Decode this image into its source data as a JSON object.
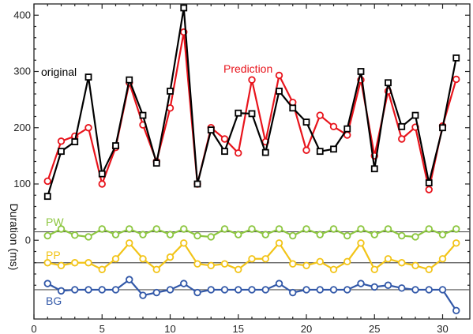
{
  "chart_data": {
    "type": "line",
    "title": "",
    "xlabel": "",
    "ylabel": "Duration (ms)",
    "xlim": [
      0,
      32
    ],
    "ylim": [
      -140,
      420
    ],
    "x_ticks": [
      0,
      5,
      10,
      15,
      20,
      25,
      30
    ],
    "y_ticks": [
      0,
      100,
      200,
      300,
      400
    ],
    "grid": false,
    "x": [
      1,
      2,
      3,
      4,
      5,
      6,
      7,
      8,
      9,
      10,
      11,
      12,
      13,
      14,
      15,
      16,
      17,
      18,
      19,
      20,
      21,
      22,
      23,
      24,
      25,
      26,
      27,
      28,
      29,
      30,
      31
    ],
    "series": [
      {
        "name": "original",
        "color": "#000000",
        "marker": "square",
        "values": [
          78,
          158,
          175,
          290,
          118,
          168,
          285,
          222,
          137,
          265,
          413,
          100,
          196,
          158,
          226,
          225,
          156,
          265,
          235,
          210,
          158,
          162,
          198,
          300,
          127,
          280,
          202,
          222,
          102,
          200,
          324
        ]
      },
      {
        "name": "Prediction",
        "color": "#e8141c",
        "marker": "circle",
        "values": [
          105,
          176,
          185,
          200,
          100,
          165,
          280,
          205,
          140,
          235,
          370,
          100,
          200,
          180,
          155,
          285,
          175,
          293,
          245,
          160,
          222,
          202,
          187,
          285,
          150,
          265,
          180,
          201,
          90,
          203,
          286
        ]
      },
      {
        "name": "PW",
        "color": "#8cc63f",
        "marker": "circle",
        "baseline": 15,
        "values": [
          8,
          20,
          9,
          6,
          20,
          10,
          20,
          10,
          20,
          10,
          20,
          8,
          6,
          20,
          10,
          20,
          10,
          20,
          8,
          20,
          10,
          20,
          8,
          20,
          10,
          20,
          8,
          6,
          20,
          10,
          20
        ]
      },
      {
        "name": "PP",
        "color": "#f2c418",
        "marker": "circle",
        "baseline": -40,
        "values": [
          -40,
          -45,
          -40,
          -40,
          -52,
          -33,
          -5,
          -33,
          -52,
          -30,
          -5,
          -42,
          -45,
          -42,
          -52,
          -33,
          -33,
          -5,
          -42,
          -45,
          -38,
          -52,
          -38,
          -5,
          -52,
          -33,
          -40,
          -45,
          -52,
          -33,
          -5
        ]
      },
      {
        "name": "BG",
        "color": "#3258a8",
        "marker": "circle",
        "baseline": -88,
        "values": [
          -77,
          -90,
          -88,
          -88,
          -88,
          -88,
          -70,
          -98,
          -93,
          -88,
          -77,
          -93,
          -88,
          -88,
          -88,
          -88,
          -88,
          -77,
          -93,
          -88,
          -88,
          -88,
          -88,
          -77,
          -83,
          -80,
          -85,
          -88,
          -88,
          -88,
          -125
        ]
      }
    ],
    "annotations": [
      {
        "text": "original",
        "color": "#000000"
      },
      {
        "text": "Prediction",
        "color": "#e8141c"
      },
      {
        "text": "PW",
        "color": "#8cc63f"
      },
      {
        "text": "PP",
        "color": "#f2c418"
      },
      {
        "text": "BG",
        "color": "#3258a8"
      }
    ]
  }
}
